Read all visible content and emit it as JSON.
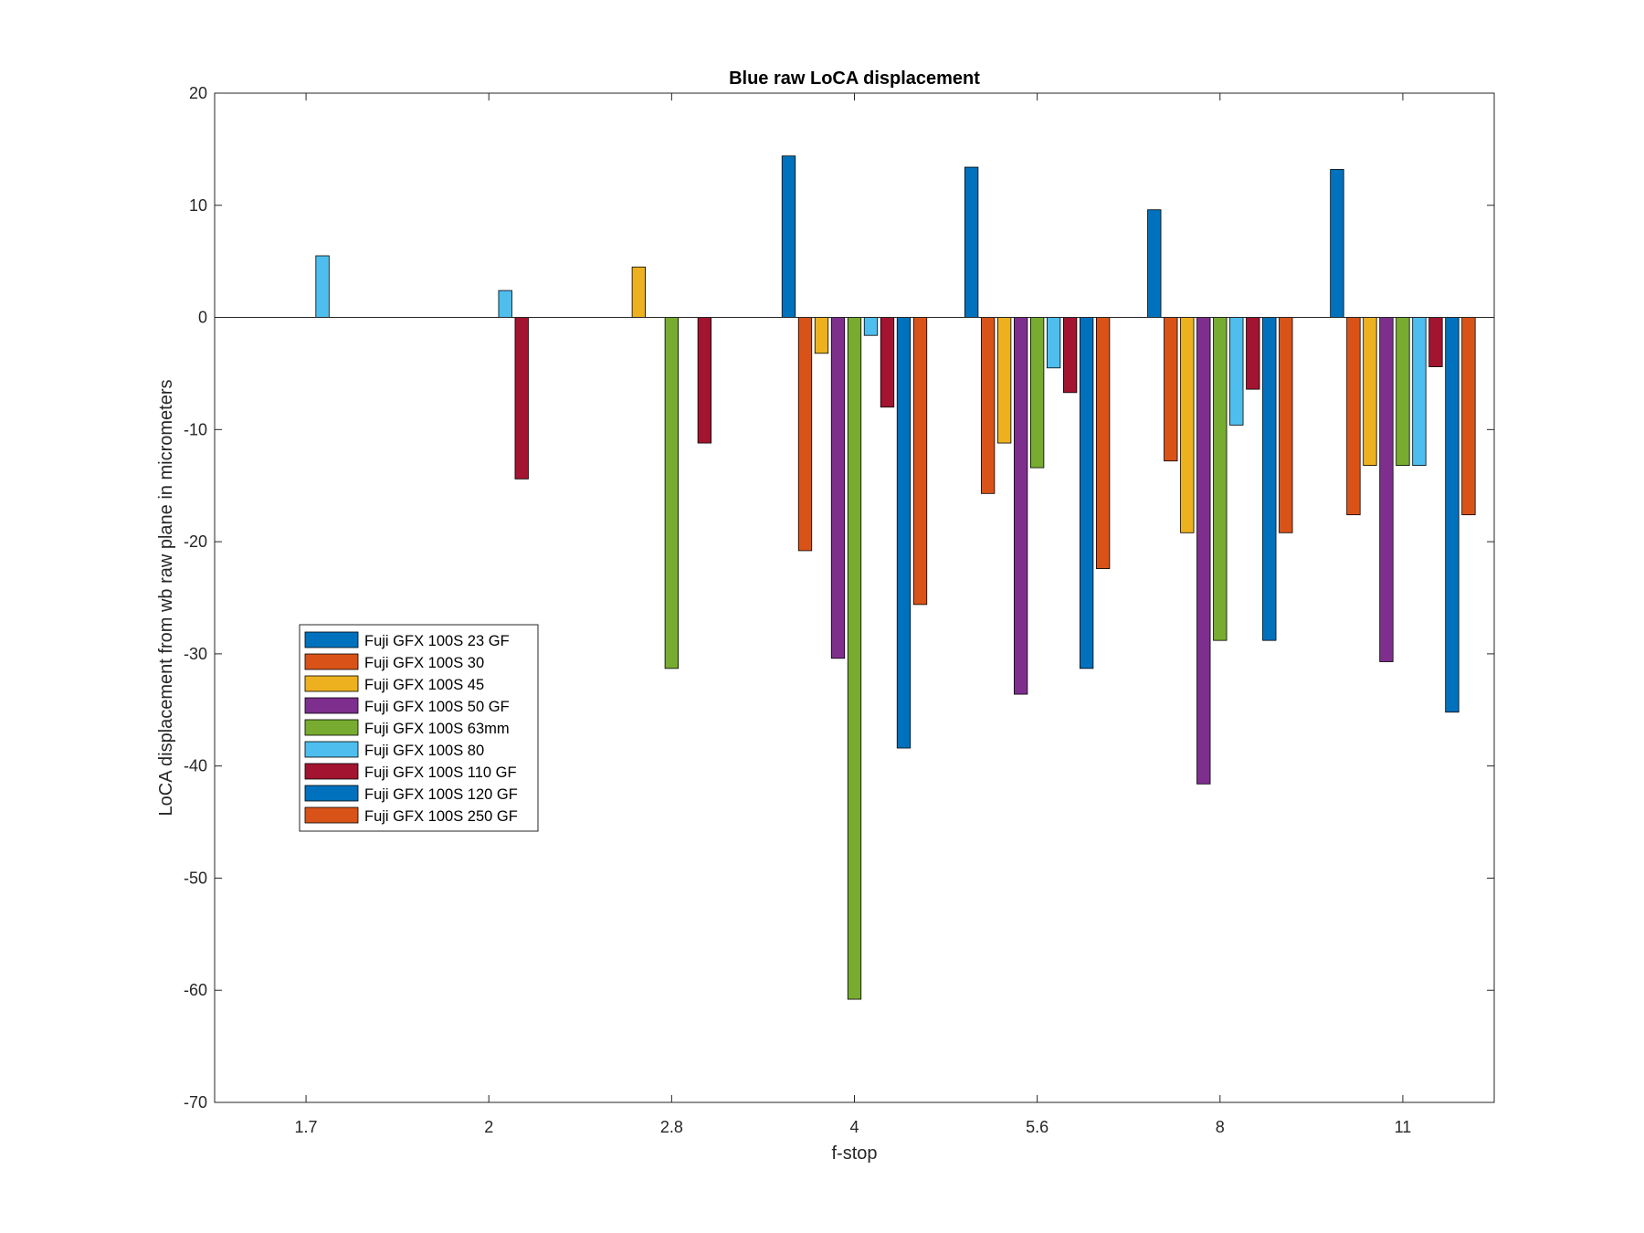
{
  "chart_data": {
    "type": "bar",
    "title": "Blue raw  LoCA displacement",
    "xlabel": "f-stop",
    "ylabel": "LoCA displacement from wb raw plane in micrometers",
    "ylim": [
      -70,
      20
    ],
    "yticks": [
      20,
      10,
      0,
      -10,
      -20,
      -30,
      -40,
      -50,
      -60,
      -70
    ],
    "categories": [
      "1.7",
      "2",
      "2.8",
      "4",
      "5.6",
      "8",
      "11"
    ],
    "grid": false,
    "legend_position": "left",
    "series": [
      {
        "name": "Fuji GFX 100S 23  GF",
        "color": "#0072BD",
        "values": [
          0,
          0,
          0,
          14.4,
          13.4,
          9.6,
          13.2
        ]
      },
      {
        "name": "Fuji GFX 100S 30",
        "color": "#D95319",
        "values": [
          0,
          0,
          0,
          -20.8,
          -15.7,
          -12.8,
          -17.6
        ]
      },
      {
        "name": "Fuji GFX 100S 45",
        "color": "#EDB120",
        "values": [
          0,
          0,
          4.5,
          -3.2,
          -11.2,
          -19.2,
          -13.2
        ]
      },
      {
        "name": "Fuji GFX 100S 50 GF",
        "color": "#7E2F8E",
        "values": [
          0,
          0,
          0,
          -30.4,
          -33.6,
          -41.6,
          -30.7
        ]
      },
      {
        "name": "Fuji GFX 100S 63mm",
        "color": "#77AC30",
        "values": [
          0,
          0,
          -31.3,
          -60.8,
          -13.4,
          -28.8,
          -13.2
        ]
      },
      {
        "name": "Fuji GFX 100S 80",
        "color": "#4DBEEE",
        "values": [
          5.5,
          2.4,
          0,
          -1.6,
          -4.5,
          -9.6,
          -13.2
        ]
      },
      {
        "name": "Fuji GFX 100S 110 GF",
        "color": "#A2142F",
        "values": [
          0,
          -14.4,
          -11.2,
          -8.0,
          -6.7,
          -6.4,
          -4.4
        ]
      },
      {
        "name": "Fuji GFX 100S 120 GF",
        "color": "#0072BD",
        "values": [
          0,
          0,
          0,
          -38.4,
          -31.3,
          -28.8,
          -35.2
        ]
      },
      {
        "name": "Fuji GFX 100S 250 GF",
        "color": "#D95319",
        "values": [
          0,
          0,
          0,
          -25.6,
          -22.4,
          -19.2,
          -17.6
        ]
      }
    ]
  }
}
